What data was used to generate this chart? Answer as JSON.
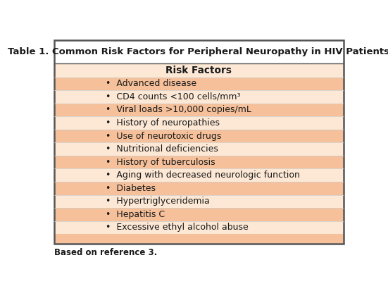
{
  "title": "Table 1. Common Risk Factors for Peripheral Neuropathy in HIV Patients",
  "column_header": "Risk Factors",
  "rows": [
    "Advanced disease",
    "CD4 counts <100 cells/mm³",
    "Viral loads >10,000 copies/mL",
    "History of neuropathies",
    "Use of neurotoxic drugs",
    "Nutritional deficiencies",
    "History of tuberculosis",
    "Aging with decreased neurologic function",
    "Diabetes",
    "Hypertriglyceridemia",
    "Hepatitis C",
    "Excessive ethyl alcohol abuse"
  ],
  "footnote": "Based on reference 3.",
  "title_bg": "#ffffff",
  "header_bg": "#fce8d5",
  "row_bg_odd": "#f5c09a",
  "row_bg_even": "#fce8d5",
  "bottom_pad_bg": "#f5c09a",
  "outer_border_color": "#555555",
  "row_border_color": "#b8b8b8",
  "title_font_color": "#1a1a1a",
  "text_color": "#1a1a1a",
  "title_fontsize": 9.5,
  "header_fontsize": 9.8,
  "row_fontsize": 9.0,
  "footnote_fontsize": 8.5
}
